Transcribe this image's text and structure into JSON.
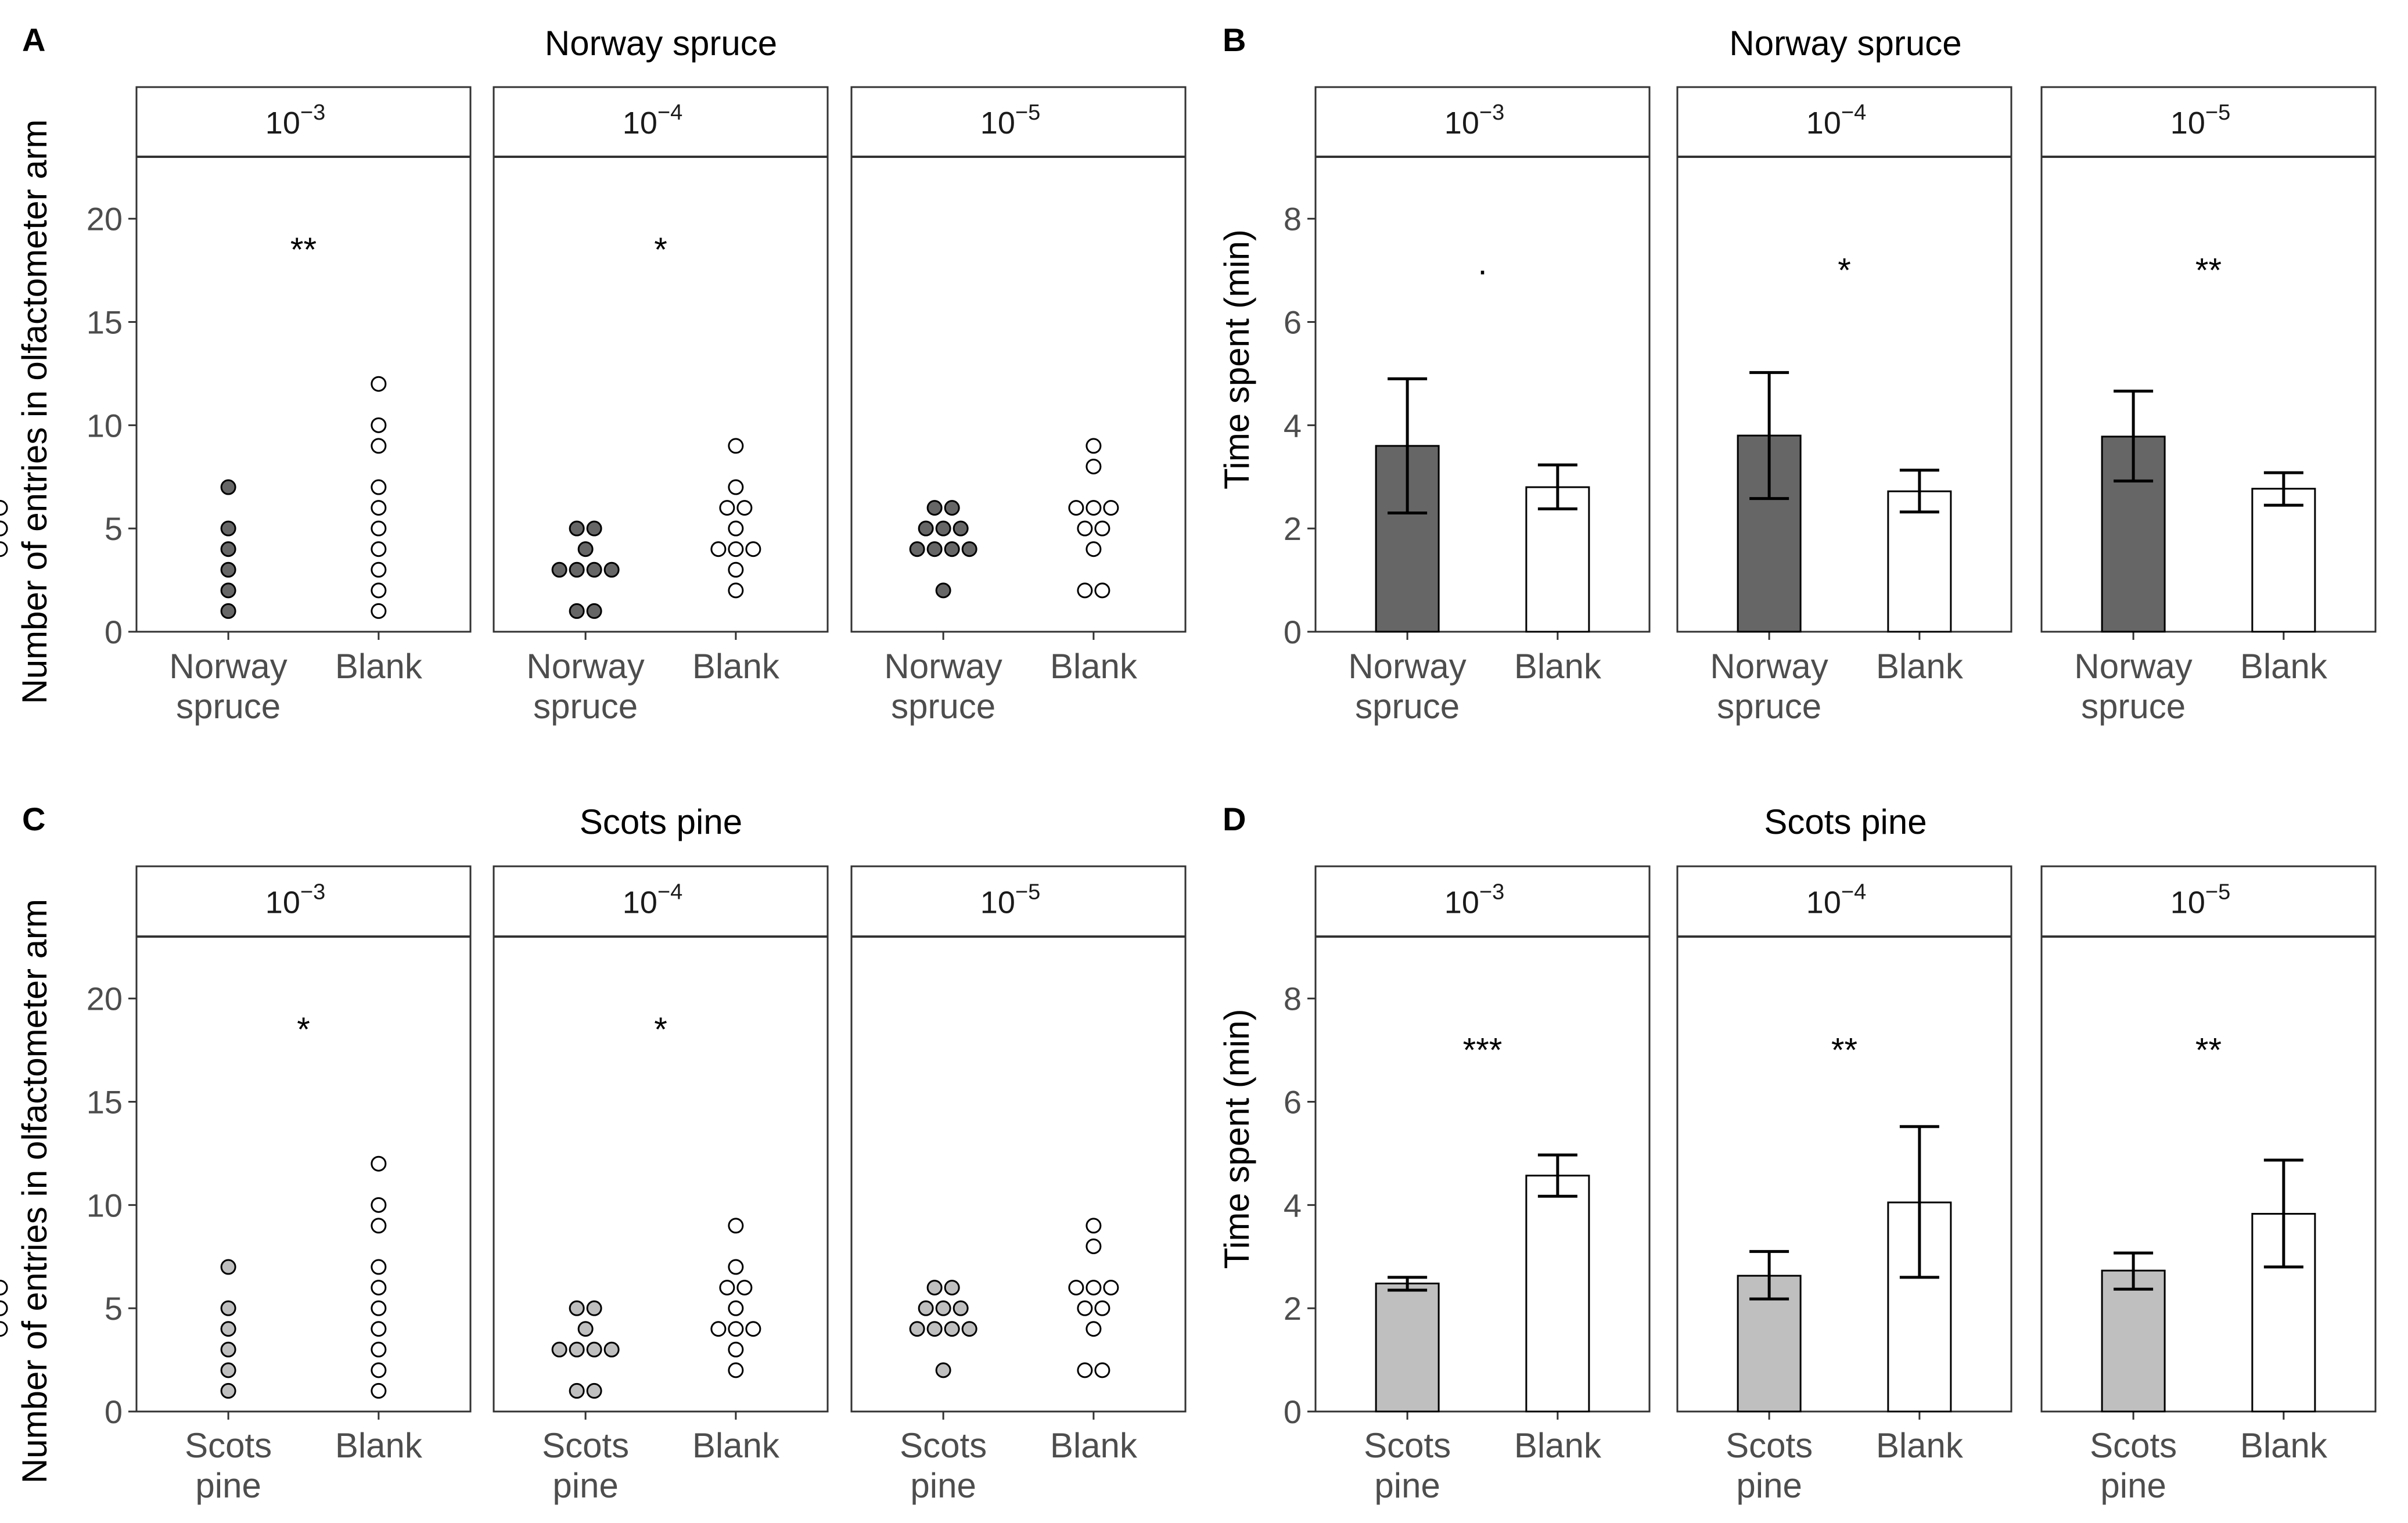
{
  "colors": {
    "spruce": "#666666",
    "pine": "#bfbfbf",
    "blank": "#ffffff",
    "stroke": "#000000",
    "strip_line": "#333333",
    "tick_text": "#4d4d4d"
  },
  "chart_data": [
    {
      "panel": "A",
      "type": "scatter",
      "title": "Norway spruce",
      "ylabel": "Number of entries in olfactometer arm",
      "ylim": [
        0,
        23
      ],
      "yticks": [
        "0",
        "5",
        "10",
        "15",
        "20"
      ],
      "categories": [
        [
          "Norway",
          "spruce"
        ],
        [
          "Blank"
        ]
      ],
      "fill_series": "spruce",
      "facets": [
        {
          "strip": "10",
          "exp": "−3",
          "sig": "**",
          "points": [
            [
              1,
              1
            ],
            [
              2,
              1
            ],
            [
              3,
              1
            ],
            [
              3,
              2
            ],
            [
              4,
              1
            ],
            [
              4,
              2
            ],
            [
              4,
              3
            ],
            [
              5,
              1
            ],
            [
              5,
              2
            ],
            [
              5,
              3
            ],
            [
              7,
              1
            ],
            [
              1,
              2
            ],
            [
              2,
              2
            ],
            [
              5,
              3
            ],
            [
              6,
              2
            ],
            [
              6,
              3
            ],
            [
              6,
              4
            ],
            [
              7,
              2
            ],
            [
              9,
              2
            ],
            [
              10,
              2
            ],
            [
              12,
              2
            ]
          ]
        },
        {
          "strip": "10",
          "exp": "−4",
          "sig": "*",
          "points": [
            [
              1,
              1
            ],
            [
              1,
              1
            ],
            [
              3,
              1
            ],
            [
              3,
              1
            ],
            [
              3,
              1
            ],
            [
              3,
              1
            ],
            [
              4,
              1
            ],
            [
              5,
              1
            ],
            [
              5,
              1
            ],
            [
              2,
              2
            ],
            [
              3,
              2
            ],
            [
              4,
              2
            ],
            [
              4,
              2
            ],
            [
              4,
              2
            ],
            [
              5,
              2
            ],
            [
              6,
              2
            ],
            [
              6,
              2
            ],
            [
              7,
              2
            ],
            [
              9,
              2
            ]
          ]
        },
        {
          "strip": "10",
          "exp": "−5",
          "sig": "",
          "points": [
            [
              2,
              1
            ],
            [
              4,
              1
            ],
            [
              4,
              1
            ],
            [
              4,
              1
            ],
            [
              4,
              1
            ],
            [
              5,
              1
            ],
            [
              5,
              1
            ],
            [
              5,
              1
            ],
            [
              6,
              1
            ],
            [
              6,
              1
            ],
            [
              2,
              2
            ],
            [
              2,
              2
            ],
            [
              4,
              2
            ],
            [
              5,
              2
            ],
            [
              5,
              2
            ],
            [
              6,
              2
            ],
            [
              6,
              2
            ],
            [
              6,
              2
            ],
            [
              8,
              2
            ],
            [
              9,
              2
            ]
          ]
        }
      ]
    },
    {
      "panel": "B",
      "type": "bar",
      "title": "Norway spruce",
      "ylabel": "Time spent (min)",
      "ylim": [
        0,
        9.2
      ],
      "yticks": [
        "0",
        "2",
        "4",
        "6",
        "8"
      ],
      "categories": [
        [
          "Norway",
          "spruce"
        ],
        [
          "Blank"
        ]
      ],
      "fill_series": "spruce",
      "facets": [
        {
          "strip": "10",
          "exp": "−3",
          "sig": "·",
          "values": [
            3.6,
            2.8
          ],
          "errors": [
            [
              2.3,
              4.9
            ],
            [
              2.38,
              3.23
            ]
          ]
        },
        {
          "strip": "10",
          "exp": "−4",
          "sig": "*",
          "values": [
            3.8,
            2.72
          ],
          "errors": [
            [
              2.58,
              5.02
            ],
            [
              2.32,
              3.13
            ]
          ]
        },
        {
          "strip": "10",
          "exp": "−5",
          "sig": "**",
          "values": [
            3.78,
            2.77
          ],
          "errors": [
            [
              2.92,
              4.66
            ],
            [
              2.45,
              3.08
            ]
          ]
        }
      ]
    },
    {
      "panel": "C",
      "type": "scatter",
      "title": "Scots pine",
      "ylabel": "Number of entries in olfactometer arm",
      "ylim": [
        0,
        23
      ],
      "yticks": [
        "0",
        "5",
        "10",
        "15",
        "20"
      ],
      "categories": [
        [
          "Scots",
          "pine"
        ],
        [
          "Blank"
        ]
      ],
      "fill_series": "pine",
      "facets": [
        {
          "strip": "10",
          "exp": "−3",
          "sig": "*",
          "points": [
            [
              1,
              1
            ],
            [
              2,
              1
            ],
            [
              3,
              1
            ],
            [
              3,
              2
            ],
            [
              4,
              1
            ],
            [
              4,
              2
            ],
            [
              4,
              3
            ],
            [
              5,
              1
            ],
            [
              5,
              2
            ],
            [
              5,
              3
            ],
            [
              7,
              1
            ],
            [
              1,
              2
            ],
            [
              2,
              2
            ],
            [
              5,
              3
            ],
            [
              6,
              2
            ],
            [
              6,
              3
            ],
            [
              6,
              4
            ],
            [
              7,
              2
            ],
            [
              9,
              2
            ],
            [
              10,
              2
            ],
            [
              12,
              2
            ]
          ]
        },
        {
          "strip": "10",
          "exp": "−4",
          "sig": "*",
          "points": [
            [
              1,
              1
            ],
            [
              1,
              1
            ],
            [
              3,
              1
            ],
            [
              3,
              1
            ],
            [
              3,
              1
            ],
            [
              3,
              1
            ],
            [
              4,
              1
            ],
            [
              5,
              1
            ],
            [
              5,
              1
            ],
            [
              2,
              2
            ],
            [
              3,
              2
            ],
            [
              4,
              2
            ],
            [
              4,
              2
            ],
            [
              4,
              2
            ],
            [
              5,
              2
            ],
            [
              6,
              2
            ],
            [
              6,
              2
            ],
            [
              7,
              2
            ],
            [
              9,
              2
            ]
          ]
        },
        {
          "strip": "10",
          "exp": "−5",
          "sig": "",
          "points": [
            [
              2,
              1
            ],
            [
              4,
              1
            ],
            [
              4,
              1
            ],
            [
              4,
              1
            ],
            [
              4,
              1
            ],
            [
              5,
              1
            ],
            [
              5,
              1
            ],
            [
              5,
              1
            ],
            [
              6,
              1
            ],
            [
              6,
              1
            ],
            [
              2,
              2
            ],
            [
              2,
              2
            ],
            [
              4,
              2
            ],
            [
              5,
              2
            ],
            [
              5,
              2
            ],
            [
              6,
              2
            ],
            [
              6,
              2
            ],
            [
              6,
              2
            ],
            [
              8,
              2
            ],
            [
              9,
              2
            ]
          ]
        }
      ]
    },
    {
      "panel": "D",
      "type": "bar",
      "title": "Scots pine",
      "ylabel": "Time spent (min)",
      "ylim": [
        0,
        9.2
      ],
      "yticks": [
        "0",
        "2",
        "4",
        "6",
        "8"
      ],
      "categories": [
        [
          "Scots",
          "pine"
        ],
        [
          "Blank"
        ]
      ],
      "fill_series": "pine",
      "facets": [
        {
          "strip": "10",
          "exp": "−3",
          "sig": "***",
          "values": [
            2.48,
            4.57
          ],
          "errors": [
            [
              2.35,
              2.6
            ],
            [
              4.17,
              4.97
            ]
          ]
        },
        {
          "strip": "10",
          "exp": "−4",
          "sig": "**",
          "values": [
            2.63,
            4.05
          ],
          "errors": [
            [
              2.18,
              3.1
            ],
            [
              2.6,
              5.52
            ]
          ]
        },
        {
          "strip": "10",
          "exp": "−5",
          "sig": "**",
          "values": [
            2.73,
            3.83
          ],
          "errors": [
            [
              2.37,
              3.07
            ],
            [
              2.8,
              4.87
            ]
          ]
        }
      ]
    }
  ]
}
